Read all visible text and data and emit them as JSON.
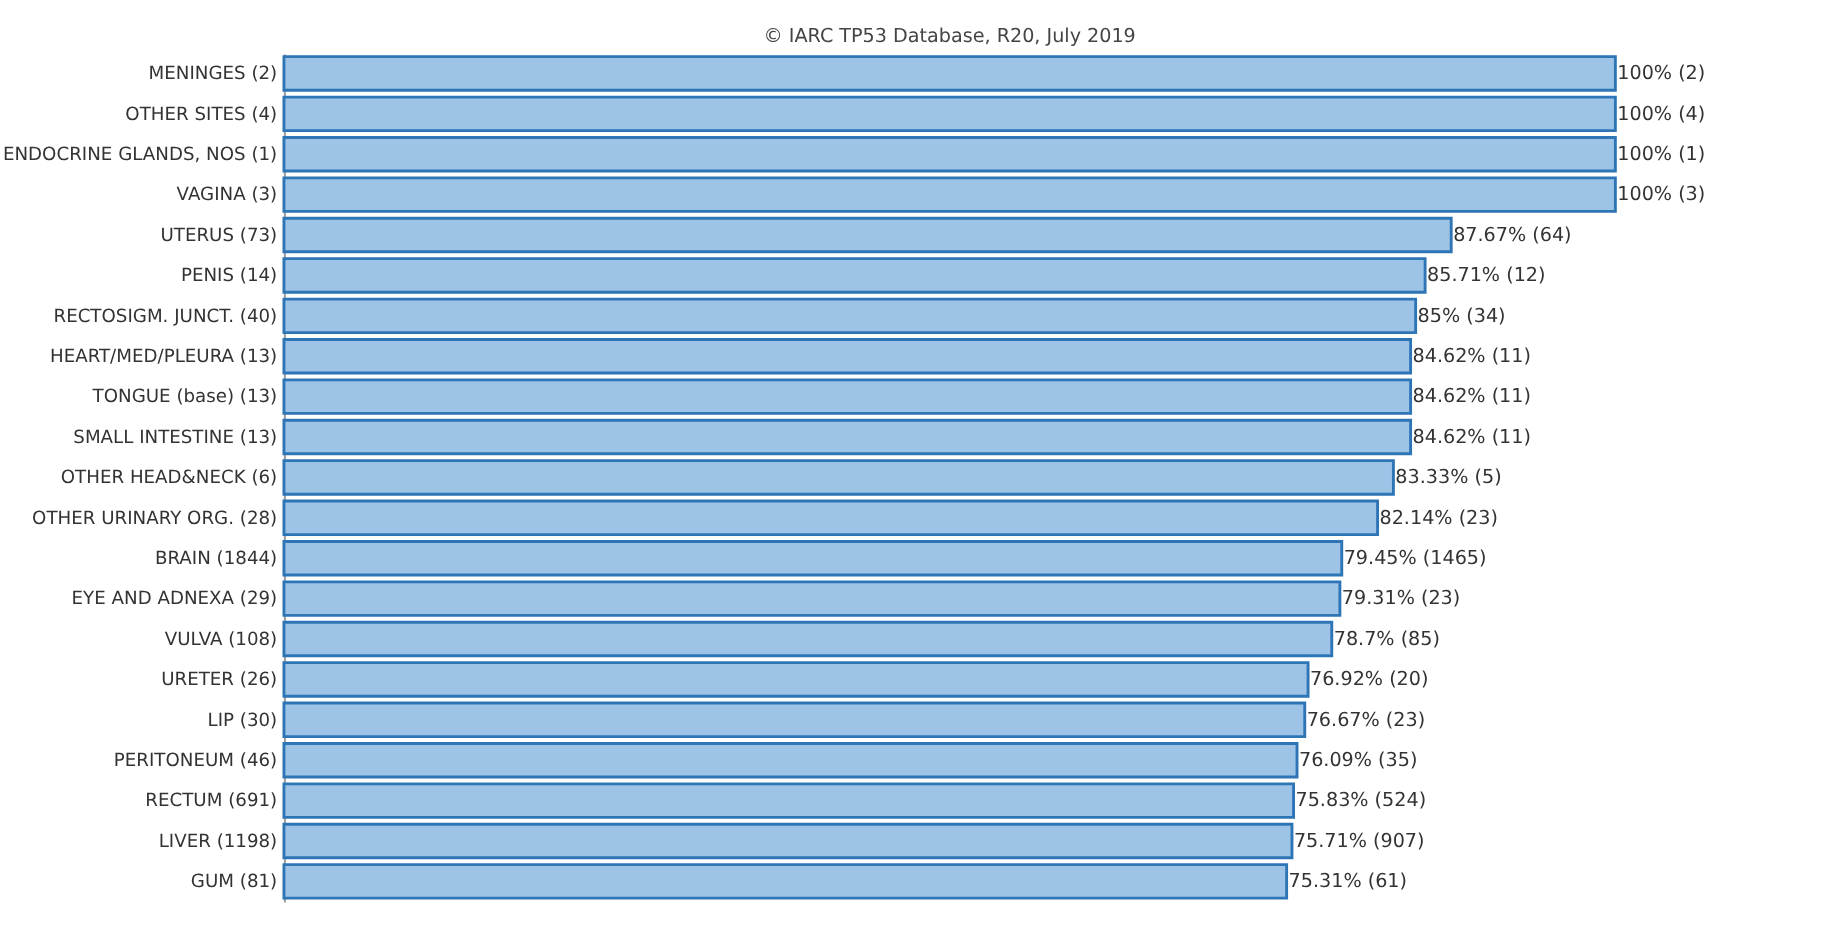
{
  "chart_data": {
    "type": "bar",
    "orientation": "horizontal",
    "annotations": [
      "© IARC TP53 Database, R20, July 2019"
    ],
    "categories": [
      "MENINGES (2)",
      "OTHER SITES (4)",
      "ENDOCRINE GLANDS, NOS (1)",
      "VAGINA (3)",
      "UTERUS (73)",
      "PENIS (14)",
      "RECTOSIGM. JUNCT. (40)",
      "HEART/MED/PLEURA (13)",
      "TONGUE (base) (13)",
      "SMALL INTESTINE (13)",
      "OTHER HEAD&NECK (6)",
      "OTHER URINARY ORG. (28)",
      "BRAIN (1844)",
      "EYE AND ADNEXA (29)",
      "VULVA (108)",
      "URETER (26)",
      "LIP (30)",
      "PERITONEUM (46)",
      "RECTUM (691)",
      "LIVER (1198)",
      "GUM (81)"
    ],
    "values": [
      100,
      100,
      100,
      100,
      87.67,
      85.71,
      85,
      84.62,
      84.62,
      84.62,
      83.33,
      82.14,
      79.45,
      79.31,
      78.7,
      76.92,
      76.67,
      76.09,
      75.83,
      75.71,
      75.31
    ],
    "value_labels": [
      "100% (2)",
      "100% (4)",
      "100% (1)",
      "100% (3)",
      "87.67% (64)",
      "85.71% (12)",
      "85% (34)",
      "84.62% (11)",
      "84.62% (11)",
      "84.62% (11)",
      "83.33% (5)",
      "82.14% (23)",
      "79.45% (1465)",
      "79.31% (23)",
      "78.7% (85)",
      "76.92% (20)",
      "76.67% (23)",
      "76.09% (35)",
      "75.83% (524)",
      "75.71% (907)",
      "75.31% (61)"
    ],
    "color": "#9dc3e6",
    "grid": false
  }
}
